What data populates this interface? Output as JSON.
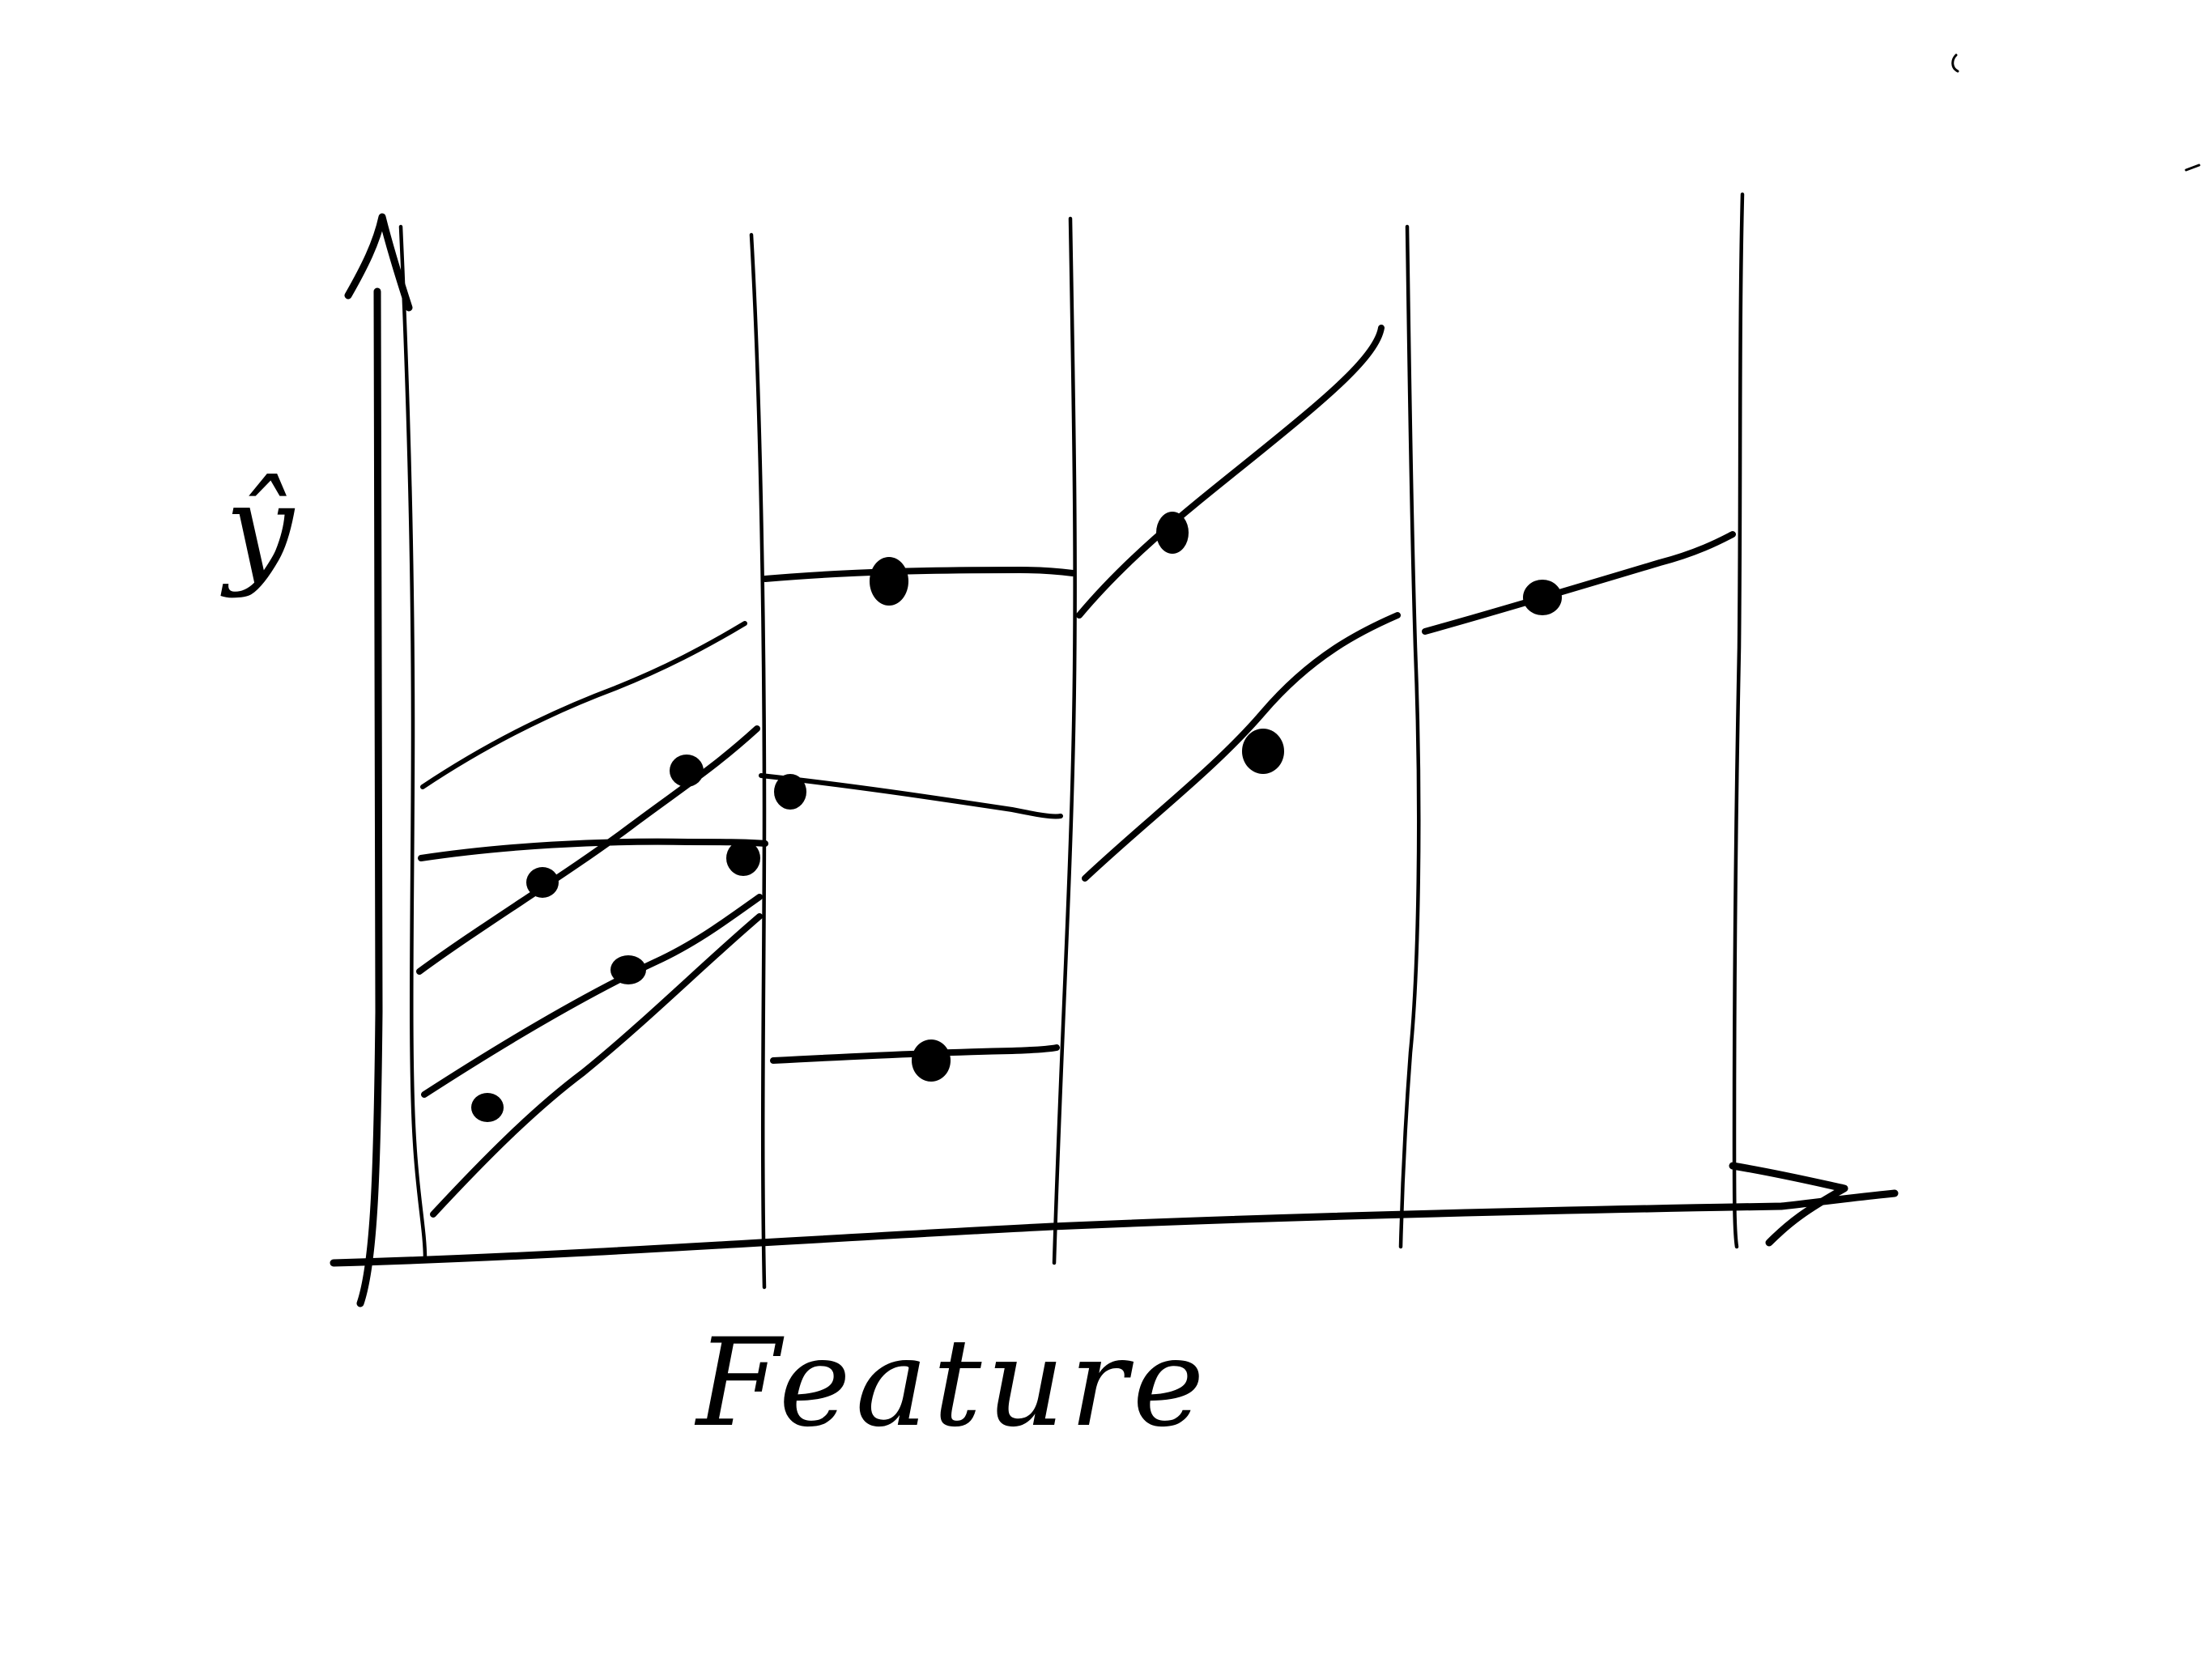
{
  "diagram": {
    "x_axis_label": "Feature",
    "y_axis_label": "ŷ",
    "ink_color": "#000000",
    "background_color": "#ffffff",
    "intervals": 5
  }
}
